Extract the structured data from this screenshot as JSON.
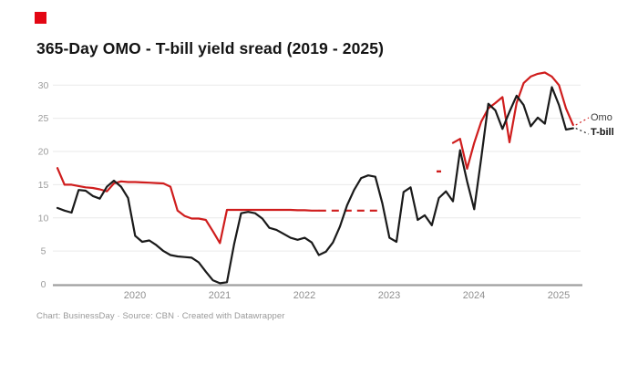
{
  "branding": {
    "logo_color": "#e30613"
  },
  "header": {
    "title": "365-Day OMO - T-bill yield sread (2019 - 2025)"
  },
  "legend": {
    "omo": "Omo",
    "tbill": "T-bill"
  },
  "footer": {
    "text": "Chart: BusinessDay · Source: CBN · Created with Datawrapper"
  },
  "chart_data": {
    "type": "line",
    "title": "365-Day OMO - T-bill yield sread (2019 - 2025)",
    "x_start": "2019-02",
    "x_end": "2025-03",
    "frequency": "monthly",
    "x_tick_labels": [
      "2020",
      "2021",
      "2022",
      "2023",
      "2024",
      "2025"
    ],
    "y_ticks": [
      0,
      5,
      10,
      15,
      20,
      25,
      30
    ],
    "ylim": [
      0,
      32.5
    ],
    "grid": true,
    "ylabel": "",
    "xlabel": "",
    "legend_position": "right-of-line-ends",
    "series": [
      {
        "name": "Omo",
        "color": "#cf1d1d",
        "style_note": "solid; sparse interpolated stretch drawn dashed; isolated points drawn as short dashes",
        "dashed_range": [
          37,
          46
        ],
        "values": [
          17.5,
          15.0,
          15.0,
          14.8,
          14.6,
          14.5,
          14.3,
          14.0,
          15.2,
          15.5,
          15.4,
          15.4,
          15.35,
          15.3,
          15.25,
          15.2,
          14.7,
          11.1,
          10.3,
          9.9,
          9.9,
          9.7,
          8.0,
          6.2,
          11.2,
          11.2,
          11.2,
          11.2,
          11.2,
          11.2,
          11.2,
          11.2,
          11.2,
          11.2,
          11.15,
          11.15,
          11.1,
          11.1,
          11.1,
          11.1,
          11.1,
          11.1,
          11.1,
          11.1,
          11.1,
          11.1,
          11.1,
          null,
          null,
          null,
          null,
          null,
          null,
          null,
          17.0,
          null,
          21.3,
          21.9,
          17.4,
          21.3,
          24.5,
          26.5,
          27.3,
          28.2,
          21.4,
          27.3,
          30.3,
          31.3,
          31.7,
          31.9,
          31.3,
          30.0,
          26.5,
          24.0
        ]
      },
      {
        "name": "T-bill",
        "color": "#1a1a1a",
        "values": [
          11.5,
          11.1,
          10.8,
          14.2,
          14.1,
          13.3,
          12.9,
          14.7,
          15.6,
          14.7,
          13.0,
          7.3,
          6.4,
          6.6,
          5.9,
          5.0,
          4.4,
          4.2,
          4.1,
          4.0,
          3.3,
          1.9,
          0.6,
          0.15,
          0.3,
          6.0,
          10.7,
          10.9,
          10.7,
          9.9,
          8.5,
          8.2,
          7.6,
          7.0,
          6.7,
          7.0,
          6.3,
          4.4,
          4.9,
          6.3,
          8.7,
          11.9,
          14.2,
          16.0,
          16.4,
          16.2,
          12.2,
          7.0,
          6.4,
          13.9,
          14.6,
          9.7,
          10.4,
          8.9,
          13.0,
          14.0,
          12.5,
          20.2,
          15.5,
          11.3,
          19.0,
          27.2,
          26.2,
          23.4,
          26.0,
          28.4,
          27.0,
          23.8,
          25.1,
          24.2,
          29.7,
          27.0,
          23.3,
          23.5
        ]
      }
    ]
  }
}
